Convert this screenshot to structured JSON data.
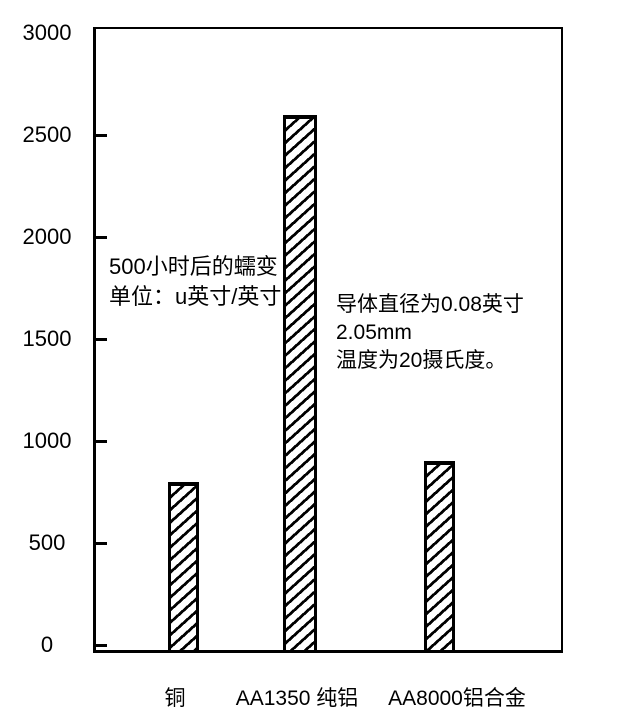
{
  "chart_data": {
    "type": "bar",
    "title": "",
    "xlabel": "",
    "ylabel": "",
    "categories": [
      "铜",
      "AA1350 纯铝",
      "AA8000铝合金"
    ],
    "values": [
      800,
      2600,
      900
    ],
    "ylim": [
      0,
      3000
    ],
    "yticks": [
      0,
      500,
      1000,
      1500,
      2000,
      2500,
      3000
    ],
    "grid": "off",
    "legend": "none",
    "bar_style": "diagonal-hatch-black-on-white",
    "annotations": [
      {
        "id": "creep-units",
        "lines": [
          "500小时后的蠕变",
          "单位：u英寸/英寸"
        ]
      },
      {
        "id": "conductor-conditions",
        "lines": [
          "导体直径为0.08英寸",
          "2.05mm",
          "温度为20摄氏度。"
        ]
      }
    ],
    "colors": {
      "ink": "#000000",
      "background": "#ffffff"
    }
  }
}
